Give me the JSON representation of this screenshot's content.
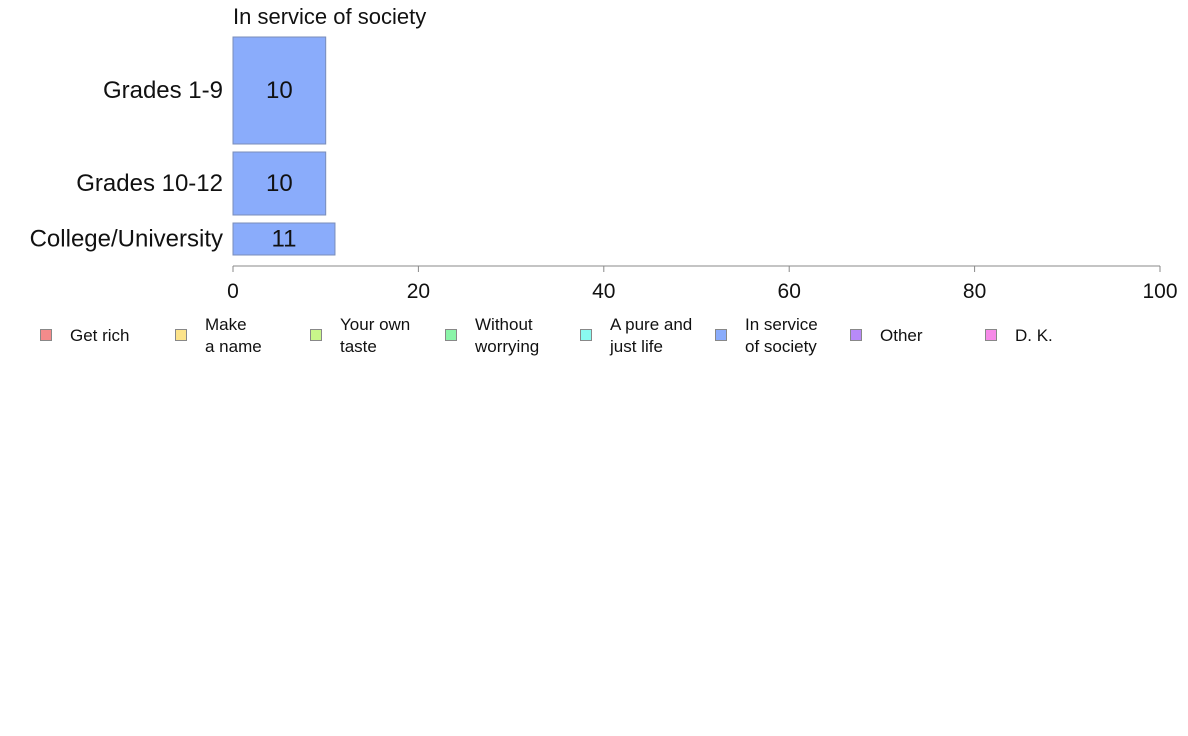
{
  "chart_data": {
    "type": "bar",
    "orientation": "horizontal",
    "title": "In service of society",
    "categories": [
      "Grades 1-9",
      "Grades 10-12",
      "College/University"
    ],
    "series": [
      {
        "name": "In service of society",
        "values": [
          10,
          10,
          11
        ],
        "labels": [
          "10",
          "10",
          "11"
        ]
      }
    ],
    "xlim": [
      0,
      100
    ],
    "x_ticks": [
      "0",
      "20",
      "40",
      "60",
      "80",
      "100"
    ],
    "grid": false,
    "bar_color": "#8aacfb",
    "legend_position": "bottom",
    "legend": [
      {
        "label": "Get rich",
        "color": "#f48b8b"
      },
      {
        "label": "Make\na name",
        "color": "#fce38a"
      },
      {
        "label": "Your own\ntaste",
        "color": "#c8f68a"
      },
      {
        "label": "Without\nworrying",
        "color": "#8af4a8"
      },
      {
        "label": "A pure and\njust life",
        "color": "#8afaf0"
      },
      {
        "label": "In service\nof society",
        "color": "#8aacfb"
      },
      {
        "label": "Other",
        "color": "#b88af8"
      },
      {
        "label": "D. K.",
        "color": "#f68ae8"
      }
    ]
  }
}
